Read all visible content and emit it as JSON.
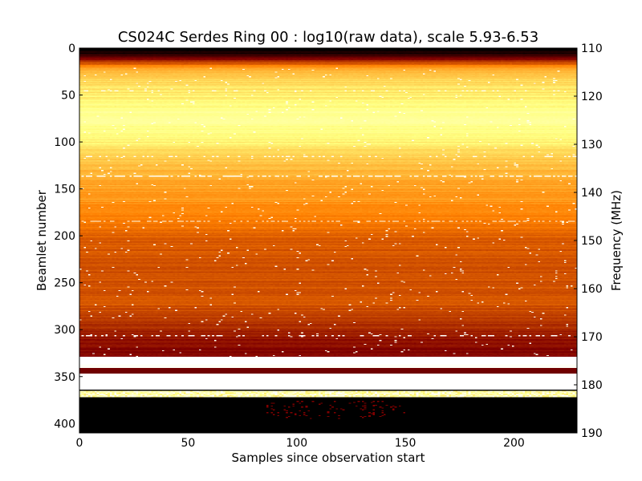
{
  "chart_data": {
    "type": "heatmap",
    "title": "CS024C Serdes Ring 00 : log10(raw data), scale 5.93-6.53",
    "xlabel": "Samples since observation start",
    "ylabel": "Beamlet number",
    "ylabel_right": "Frequency (MHz)",
    "xlim": [
      0,
      229
    ],
    "ylim": [
      0,
      410
    ],
    "ylim_right": [
      110,
      190
    ],
    "x_ticks": [
      "0",
      "50",
      "100",
      "150",
      "200"
    ],
    "y_ticks": [
      "0",
      "50",
      "100",
      "150",
      "200",
      "250",
      "300",
      "350",
      "400"
    ],
    "y_ticks_right": [
      "110",
      "120",
      "130",
      "140",
      "150",
      "160",
      "170",
      "180",
      "190"
    ],
    "color_scale": [
      5.93,
      6.53
    ],
    "colormap": "afmhot",
    "beamlet_profile": [
      {
        "beamlet": 0,
        "value": 0.0
      },
      {
        "beamlet": 5,
        "value": 0.05
      },
      {
        "beamlet": 12,
        "value": 0.28
      },
      {
        "beamlet": 20,
        "value": 0.55
      },
      {
        "beamlet": 30,
        "value": 0.66
      },
      {
        "beamlet": 50,
        "value": 0.72
      },
      {
        "beamlet": 75,
        "value": 0.8
      },
      {
        "beamlet": 95,
        "value": 0.74
      },
      {
        "beamlet": 120,
        "value": 0.64
      },
      {
        "beamlet": 150,
        "value": 0.57
      },
      {
        "beamlet": 180,
        "value": 0.5
      },
      {
        "beamlet": 200,
        "value": 0.44
      },
      {
        "beamlet": 240,
        "value": 0.4
      },
      {
        "beamlet": 270,
        "value": 0.42
      },
      {
        "beamlet": 290,
        "value": 0.36
      },
      {
        "beamlet": 305,
        "value": 0.3
      },
      {
        "beamlet": 320,
        "value": 0.26
      },
      {
        "beamlet": 329,
        "value": 0.26
      }
    ],
    "bands": [
      {
        "from": 329,
        "to": 337,
        "value": 1.0
      },
      {
        "from": 337,
        "to": 341,
        "value": 0.98
      },
      {
        "from": 341,
        "to": 347,
        "value": 0.22
      },
      {
        "from": 347,
        "to": 364,
        "value": 1.0
      },
      {
        "from": 364,
        "to": 365,
        "value": 0.0
      },
      {
        "from": 365,
        "to": 372,
        "value": 0.85
      },
      {
        "from": 372,
        "to": 410,
        "value": 0.0
      }
    ],
    "rfi_rows": [
      {
        "beamlet": 136,
        "value": 0.98,
        "density": 0.55
      },
      {
        "beamlet": 184,
        "value": 0.96,
        "density": 0.5
      },
      {
        "beamlet": 306,
        "value": 1.0,
        "density": 0.35
      },
      {
        "beamlet": 115,
        "value": 0.97,
        "density": 0.2
      },
      {
        "beamlet": 45,
        "value": 0.95,
        "density": 0.15
      }
    ]
  }
}
